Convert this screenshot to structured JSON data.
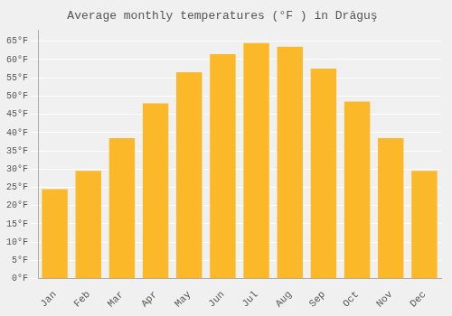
{
  "chart_data": {
    "type": "bar",
    "title": "Average monthly temperatures (°F ) in Drăguş",
    "categories": [
      "Jan",
      "Feb",
      "Mar",
      "Apr",
      "May",
      "Jun",
      "Jul",
      "Aug",
      "Sep",
      "Oct",
      "Nov",
      "Dec"
    ],
    "values": [
      24.5,
      29.5,
      38.5,
      48.0,
      56.5,
      61.5,
      64.5,
      63.5,
      57.5,
      48.5,
      38.5,
      29.5
    ],
    "color": "#FBB829",
    "ylim": [
      0,
      68
    ],
    "yticks": [
      {
        "value": 0,
        "label": "0°F"
      },
      {
        "value": 5,
        "label": "5°F"
      },
      {
        "value": 10,
        "label": "10°F"
      },
      {
        "value": 15,
        "label": "15°F"
      },
      {
        "value": 20,
        "label": "20°F"
      },
      {
        "value": 25,
        "label": "25°F"
      },
      {
        "value": 30,
        "label": "30°F"
      },
      {
        "value": 35,
        "label": "35°F"
      },
      {
        "value": 40,
        "label": "40°F"
      },
      {
        "value": 45,
        "label": "45°F"
      },
      {
        "value": 50,
        "label": "50°F"
      },
      {
        "value": 55,
        "label": "55°F"
      },
      {
        "value": 60,
        "label": "60°F"
      },
      {
        "value": 65,
        "label": "65°F"
      }
    ],
    "grid": true
  }
}
